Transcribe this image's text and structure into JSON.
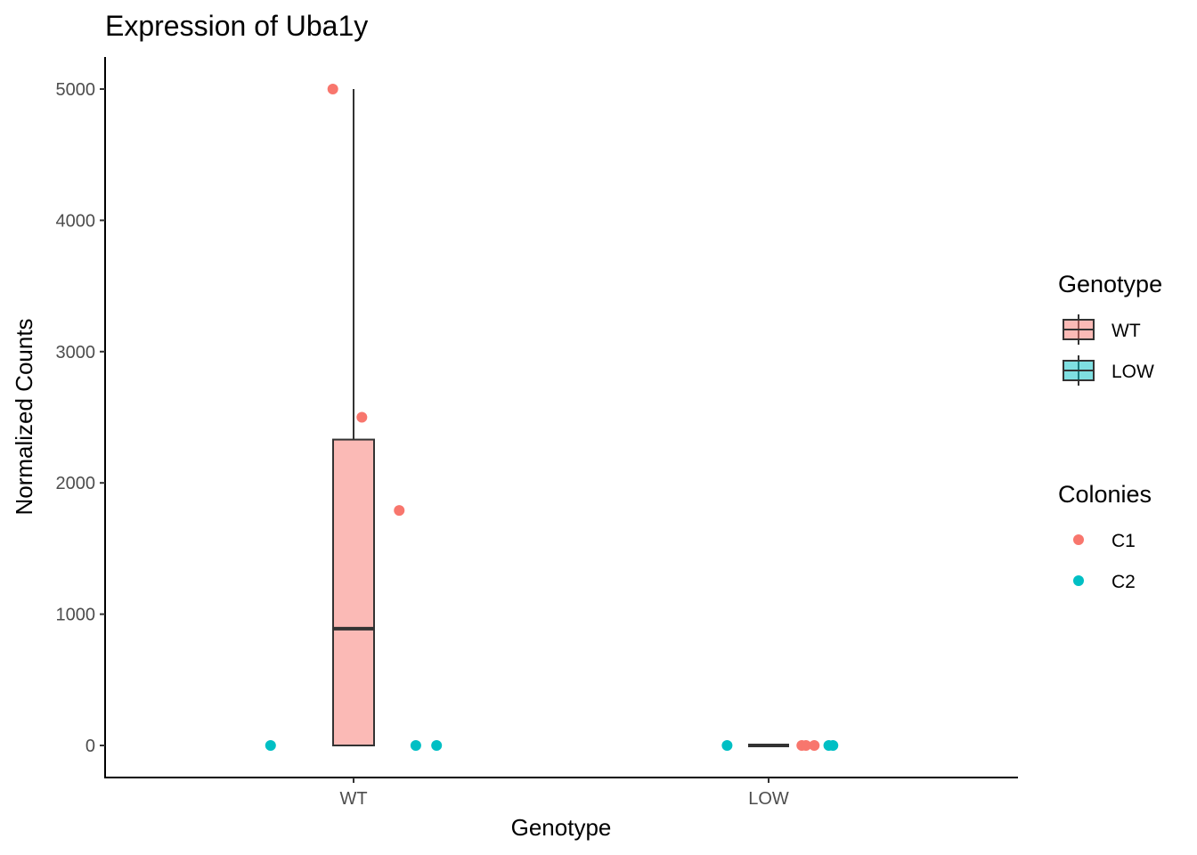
{
  "chart_data": {
    "type": "box",
    "title": "Expression of Uba1y",
    "xlabel": "Genotype",
    "ylabel": "Normalized Counts",
    "categories": [
      "WT",
      "LOW"
    ],
    "ylim": [
      -250,
      5250
    ],
    "yticks": [
      0,
      1000,
      2000,
      3000,
      4000,
      5000
    ],
    "ytick_labels": [
      "0",
      "1000",
      "2000",
      "3000",
      "4000",
      "5000"
    ],
    "grid": false,
    "boxes": [
      {
        "category": "WT",
        "genotype": "WT",
        "min": 0,
        "q1": 0,
        "median": 890,
        "q3": 2330,
        "max": 5000,
        "fill": "#F8766D"
      },
      {
        "category": "LOW",
        "genotype": "LOW",
        "min": 0,
        "q1": 0,
        "median": 0,
        "q3": 0,
        "max": 0,
        "fill": "#00BFC4"
      }
    ],
    "points": [
      {
        "category": "WT",
        "jitter": -0.2,
        "y": 0,
        "colony": "C2"
      },
      {
        "category": "WT",
        "jitter": -0.05,
        "y": 5000,
        "colony": "C1"
      },
      {
        "category": "WT",
        "jitter": 0.02,
        "y": 2500,
        "colony": "C1"
      },
      {
        "category": "WT",
        "jitter": 0.11,
        "y": 1790,
        "colony": "C1"
      },
      {
        "category": "WT",
        "jitter": 0.15,
        "y": 0,
        "colony": "C2"
      },
      {
        "category": "WT",
        "jitter": 0.2,
        "y": 0,
        "colony": "C2"
      },
      {
        "category": "LOW",
        "jitter": -0.1,
        "y": 0,
        "colony": "C2"
      },
      {
        "category": "LOW",
        "jitter": 0.08,
        "y": 0,
        "colony": "C1"
      },
      {
        "category": "LOW",
        "jitter": 0.09,
        "y": 0,
        "colony": "C1"
      },
      {
        "category": "LOW",
        "jitter": 0.11,
        "y": 0,
        "colony": "C1"
      },
      {
        "category": "LOW",
        "jitter": 0.145,
        "y": 0,
        "colony": "C2"
      },
      {
        "category": "LOW",
        "jitter": 0.155,
        "y": 0,
        "colony": "C2"
      }
    ],
    "legends": [
      {
        "title": "Genotype",
        "kind": "box",
        "entries": [
          {
            "label": "WT",
            "color": "#F8766D"
          },
          {
            "label": "LOW",
            "color": "#00BFC4"
          }
        ]
      },
      {
        "title": "Colonies",
        "kind": "point",
        "entries": [
          {
            "label": "C1",
            "color": "#F8766D"
          },
          {
            "label": "C2",
            "color": "#00BFC4"
          }
        ]
      }
    ],
    "legend_position": "right",
    "colors": {
      "C1": "#F8766D",
      "C2": "#00BFC4",
      "WT": "#F8766D",
      "LOW": "#00BFC4"
    }
  }
}
